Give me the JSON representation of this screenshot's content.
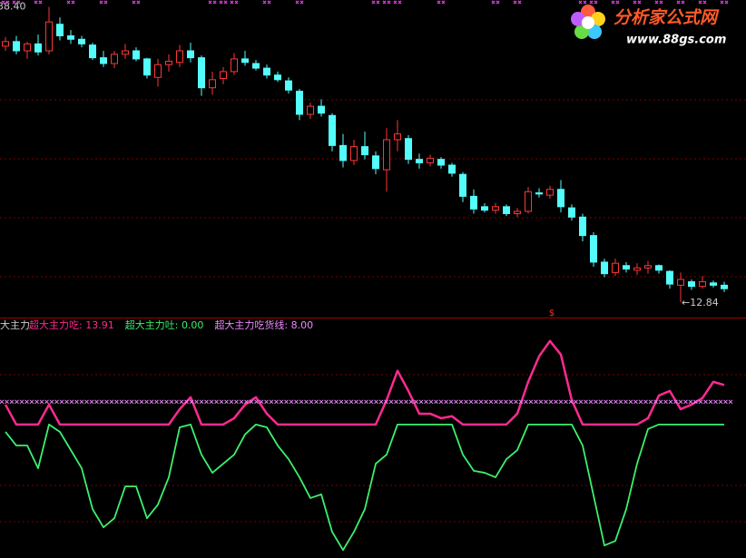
{
  "chart_data": [
    {
      "type": "candlestick",
      "open": [
        35.0,
        35.4,
        34.6,
        35.2,
        34.6,
        36.9,
        35.9,
        35.6,
        35.1,
        34.0,
        33.5,
        34.3,
        34.6,
        33.9,
        32.3,
        33.4,
        33.6,
        34.6,
        34.0,
        31.4,
        32.2,
        32.8,
        33.9,
        33.5,
        33.1,
        32.5,
        32.0,
        31.1,
        29.1,
        29.8,
        29.0,
        26.4,
        25.1,
        26.3,
        25.5,
        24.3,
        26.9,
        27.0,
        25.2,
        24.9,
        25.2,
        24.7,
        23.9,
        22.0,
        21.1,
        20.8,
        21.1,
        20.5,
        20.7,
        22.3,
        22.1,
        22.6,
        21.0,
        20.2,
        18.6,
        16.3,
        15.4,
        16.0,
        15.6,
        15.8,
        16.0,
        15.5,
        14.3,
        14.6,
        14.2,
        14.5,
        14.3
      ],
      "high": [
        35.8,
        35.9,
        35.4,
        36.0,
        38.4,
        37.5,
        36.4,
        35.9,
        35.3,
        34.6,
        34.6,
        35.2,
        34.9,
        34.0,
        33.9,
        34.3,
        35.1,
        35.3,
        34.2,
        32.8,
        33.2,
        34.4,
        34.6,
        33.8,
        33.4,
        32.8,
        32.3,
        31.3,
        30.1,
        30.4,
        29.2,
        27.4,
        26.9,
        27.6,
        25.9,
        27.9,
        28.6,
        27.3,
        25.7,
        25.6,
        25.4,
        24.9,
        24.1,
        22.6,
        21.4,
        21.4,
        21.3,
        21.0,
        22.8,
        22.7,
        22.9,
        23.4,
        21.3,
        20.5,
        18.9,
        16.6,
        16.6,
        16.3,
        16.2,
        16.4,
        16.1,
        15.6,
        15.4,
        14.8,
        15.1,
        14.7,
        14.6
      ],
      "low": [
        34.6,
        34.3,
        33.9,
        34.2,
        34.3,
        35.5,
        35.2,
        34.9,
        33.8,
        33.2,
        33.1,
        33.9,
        33.7,
        32.2,
        31.5,
        32.8,
        33.2,
        33.6,
        30.7,
        30.8,
        31.7,
        32.5,
        33.3,
        32.9,
        32.2,
        31.9,
        30.9,
        28.6,
        28.7,
        28.9,
        25.9,
        24.5,
        24.7,
        25.2,
        23.9,
        22.4,
        25.9,
        24.8,
        24.4,
        24.6,
        24.4,
        23.7,
        21.5,
        20.5,
        20.6,
        20.5,
        20.3,
        20.2,
        20.5,
        21.9,
        21.8,
        20.6,
        19.9,
        18.1,
        15.9,
        15.0,
        15.1,
        15.4,
        15.2,
        15.3,
        15.3,
        14.0,
        12.84,
        13.9,
        14.0,
        14.1,
        13.7
      ],
      "close": [
        35.4,
        34.6,
        35.2,
        34.5,
        37.1,
        35.9,
        35.6,
        35.2,
        34.0,
        33.5,
        34.3,
        34.6,
        33.9,
        32.5,
        33.4,
        33.7,
        34.6,
        34.0,
        31.4,
        32.1,
        32.8,
        33.9,
        33.6,
        33.1,
        32.5,
        32.1,
        31.2,
        29.1,
        29.8,
        29.2,
        26.4,
        25.1,
        26.3,
        25.6,
        24.4,
        26.9,
        27.4,
        25.2,
        24.9,
        25.3,
        24.7,
        24.0,
        22.0,
        20.9,
        20.8,
        21.1,
        20.5,
        20.7,
        22.4,
        22.2,
        22.6,
        21.1,
        20.2,
        18.6,
        16.3,
        15.3,
        16.2,
        15.7,
        15.8,
        16.0,
        15.6,
        14.4,
        14.8,
        14.2,
        14.6,
        14.3,
        14.0
      ],
      "up_color": "#ff3636",
      "down_color": "#54fcfc",
      "ylim": [
        11.5,
        39
      ],
      "high_label": {
        "value": 38.4,
        "label": "38.40"
      },
      "low_label": {
        "value": 12.84,
        "label": "←12.84"
      },
      "top_marks": {
        "color": "#e23de2",
        "indices": [
          0,
          1,
          3,
          6,
          9,
          12,
          19,
          20,
          21,
          24,
          27,
          34,
          35,
          36,
          40,
          45,
          47,
          53,
          54,
          56,
          58,
          60,
          62,
          64,
          66
        ]
      },
      "signal": {
        "index": 50,
        "label": "$",
        "color": "#ff2a2a"
      }
    },
    {
      "type": "line",
      "title": "大主力",
      "ylim": [
        -47,
        37
      ],
      "series": [
        {
          "name": "超大主力吃:",
          "color": "#ff2a90",
          "values": [
            7.0,
            0,
            0,
            0,
            7.0,
            0,
            0,
            0,
            0,
            0,
            0,
            0,
            0,
            0,
            0,
            0,
            5.4,
            9.6,
            0,
            0,
            0,
            2.2,
            7.0,
            9.6,
            3.8,
            0,
            0,
            0,
            0,
            0,
            0,
            0,
            0,
            0,
            0,
            8.6,
            18.9,
            11.8,
            3.8,
            3.8,
            2.2,
            2.9,
            0,
            0,
            0,
            0,
            0,
            3.8,
            15.0,
            24.0,
            29.4,
            24.6,
            8.6,
            0,
            0,
            0,
            0,
            0,
            0,
            2.2,
            10.2,
            11.8,
            5.4,
            7.0,
            9.3,
            15.0,
            13.91
          ],
          "last": 13.91
        },
        {
          "name": "超大主力吐:",
          "color": "#3cf06c",
          "values": [
            -2.6,
            -7.4,
            -7.4,
            -15.4,
            0,
            -2.6,
            -9.0,
            -15.4,
            -29.8,
            -36.2,
            -33.0,
            -21.8,
            -21.8,
            -33.0,
            -28.2,
            -18.6,
            -1.0,
            0,
            -10.6,
            -17.0,
            -13.8,
            -10.6,
            -3.5,
            0,
            -1.0,
            -7.4,
            -12.2,
            -18.6,
            -25.9,
            -24.6,
            -37.8,
            -44.2,
            -37.8,
            -29.8,
            -13.8,
            -10.6,
            0,
            0,
            0,
            0,
            0,
            0,
            -10.6,
            -16.3,
            -17.0,
            -18.6,
            -12.2,
            -9.0,
            0,
            0,
            0,
            0,
            0,
            -7.4,
            -25.0,
            -42.6,
            -41.0,
            -29.8,
            -13.8,
            -1.6,
            0,
            0,
            0,
            0,
            0,
            0,
            0
          ],
          "last": {
            "value": 0,
            "label": "0.00"
          }
        },
        {
          "name": "超大主力吃货线:",
          "color": "#ee88ff",
          "level": {
            "value": 8,
            "label": "8.00"
          },
          "style": "cross"
        }
      ]
    }
  ],
  "logo": {
    "title": "分析家公式网",
    "url": "www.88gs.com"
  }
}
